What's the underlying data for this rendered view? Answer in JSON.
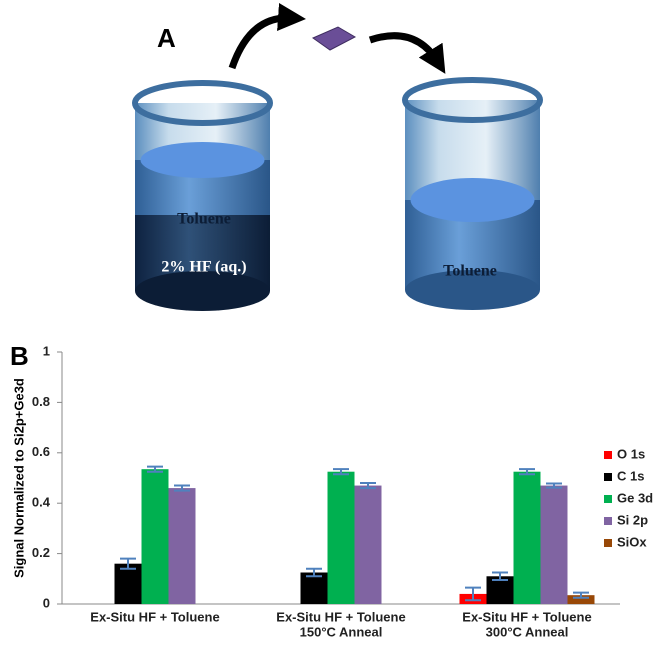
{
  "panel_a": {
    "label": "A",
    "beaker_1": {
      "upper_layer": "Toluene",
      "lower_layer": "2% HF (aq.)"
    },
    "beaker_2": {
      "layer": "Toluene"
    }
  },
  "chart_data": {
    "type": "bar",
    "panel_label": "B",
    "y_label": "Signal Normalized to Si2p+Ge3d",
    "categories": [
      [
        "Ex-Situ HF + Toluene"
      ],
      [
        "Ex-Situ HF + Toluene",
        "150°C Anneal"
      ],
      [
        "Ex-Situ HF + Toluene",
        "300°C Anneal"
      ]
    ],
    "series": [
      {
        "name": "O 1s",
        "color": "#ff0000",
        "values": [
          0,
          0,
          0.04
        ],
        "errors": [
          null,
          null,
          0.025
        ]
      },
      {
        "name": "C 1s",
        "color": "#000000",
        "values": [
          0.16,
          0.125,
          0.11
        ],
        "errors": [
          0.02,
          0.015,
          0.015
        ]
      },
      {
        "name": "Ge 3d",
        "color": "#00b050",
        "values": [
          0.535,
          0.525,
          0.525
        ],
        "errors": [
          0.01,
          0.01,
          0.01
        ]
      },
      {
        "name": "Si 2p",
        "color": "#8064a2",
        "values": [
          0.46,
          0.47,
          0.47
        ],
        "errors": [
          0.01,
          0.01,
          0.008
        ]
      },
      {
        "name": "SiOx",
        "color": "#984807",
        "values": [
          0,
          0,
          0.035
        ],
        "errors": [
          null,
          null,
          0.01
        ]
      }
    ],
    "error_color": "#4f81bd",
    "ylim": [
      0,
      1
    ],
    "yticks": [
      0,
      0.2,
      0.4,
      0.6,
      0.8,
      1
    ],
    "grid": false,
    "legend": "right"
  }
}
